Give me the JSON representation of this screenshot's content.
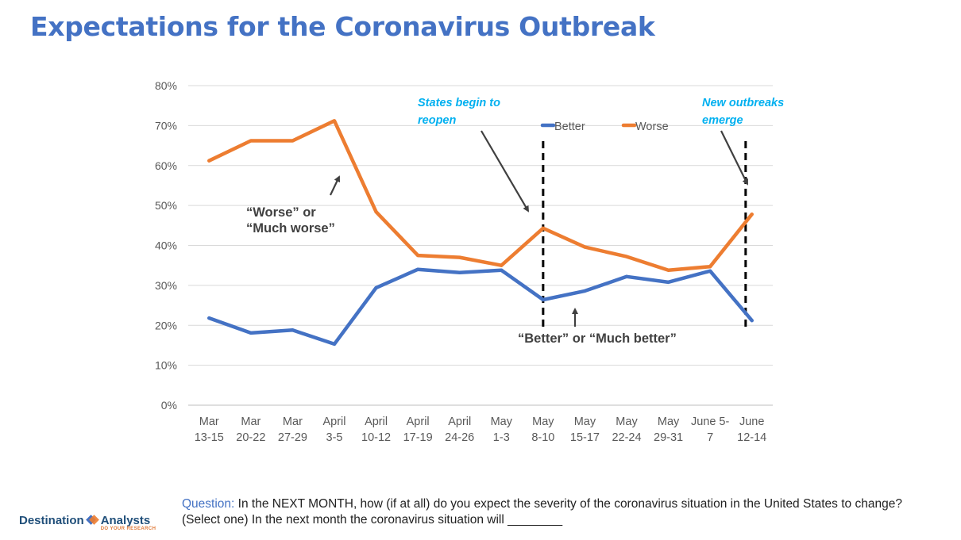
{
  "title": "Expectations for the Coronavirus Outbreak",
  "chart_data": {
    "type": "line",
    "title": "Expectations for the Coronavirus Outbreak",
    "categories": [
      [
        "Mar",
        "13-15"
      ],
      [
        "Mar",
        "20-22"
      ],
      [
        "Mar",
        "27-29"
      ],
      [
        "April",
        "3-5"
      ],
      [
        "April",
        "10-12"
      ],
      [
        "April",
        "17-19"
      ],
      [
        "April",
        "24-26"
      ],
      [
        "May",
        "1-3"
      ],
      [
        "May",
        "8-10"
      ],
      [
        "May",
        "15-17"
      ],
      [
        "May",
        "22-24"
      ],
      [
        "May",
        "29-31"
      ],
      [
        "June 5-",
        "7"
      ],
      [
        "June",
        "12-14"
      ]
    ],
    "ylim": [
      0,
      80
    ],
    "yticks": [
      "0%",
      "10%",
      "20%",
      "30%",
      "40%",
      "50%",
      "60%",
      "70%",
      "80%"
    ],
    "grid": true,
    "legend_position": "top-right",
    "series": [
      {
        "name": "Better",
        "color": "#4472c4",
        "values": [
          21.8,
          18.1,
          18.8,
          15.3,
          29.4,
          34.0,
          33.2,
          33.8,
          26.4,
          28.6,
          32.2,
          30.8,
          33.6,
          21.2
        ]
      },
      {
        "name": "Worse",
        "color": "#ed7d31",
        "values": [
          61.2,
          66.2,
          66.2,
          71.2,
          48.4,
          37.5,
          37.0,
          35.0,
          44.3,
          39.6,
          37.2,
          33.8,
          34.7,
          47.8
        ]
      }
    ],
    "vlines": [
      8,
      12.85
    ],
    "annotations": {
      "reopen": [
        "States begin to",
        "reopen"
      ],
      "outbreaks": [
        "New outbreaks",
        "emerge"
      ],
      "worse_label": [
        "“Worse” or",
        "“Much worse”"
      ],
      "better_label": "“Better” or “Much better”"
    }
  },
  "question": {
    "label": "Question:",
    "line1": " In the NEXT MONTH, how (if at all) do you expect the severity of the coronavirus situation in the United States to change?",
    "line2": "(Select one) In the next month the coronavirus situation will ________"
  },
  "logo": {
    "word1": "Destination",
    "word2": "Analysts",
    "tagline": "DO YOUR RESEARCH",
    "colors": [
      "#4472c4",
      "#ed7d31"
    ]
  }
}
